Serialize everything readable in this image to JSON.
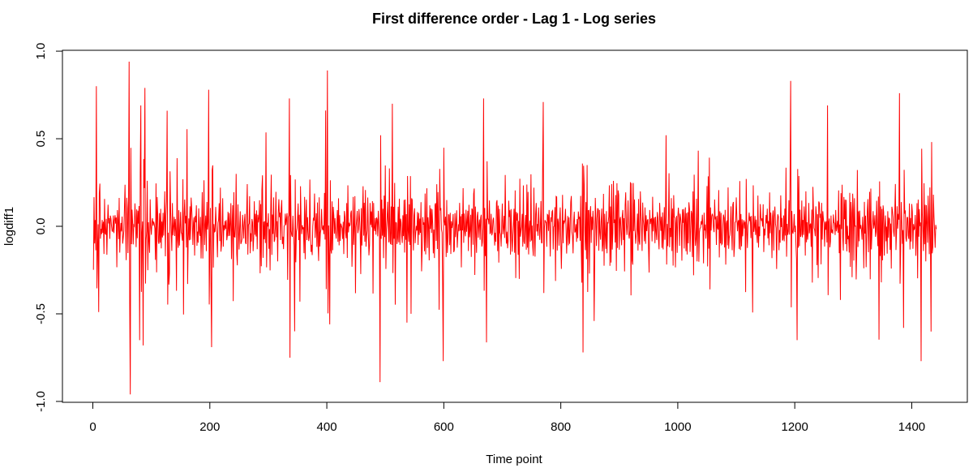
{
  "chart_data": {
    "type": "line",
    "title": "First difference order - Lag 1 - Log series",
    "xlabel": "Time point",
    "ylabel": "logdiff1",
    "xlim": [
      -52,
      1495
    ],
    "ylim": [
      -1.005,
      1.005
    ],
    "x_ticks": [
      0,
      200,
      400,
      600,
      800,
      1000,
      1200,
      1400
    ],
    "y_ticks": [
      -1.0,
      -0.5,
      0.0,
      0.5,
      1.0
    ],
    "x_tick_labels": [
      "0",
      "200",
      "400",
      "600",
      "800",
      "1000",
      "1200",
      "1400"
    ],
    "y_tick_labels": [
      "-1.0",
      "-0.5",
      "0.0",
      "0.5",
      "1.0"
    ],
    "series": [
      {
        "color": "#ff0000",
        "n_points": 1442,
        "x_start": 1,
        "notable_points": [
          {
            "x": 6,
            "y": 0.8
          },
          {
            "x": 10,
            "y": -0.49
          },
          {
            "x": 62,
            "y": 0.94
          },
          {
            "x": 64,
            "y": -0.96
          },
          {
            "x": 80,
            "y": -0.65
          },
          {
            "x": 82,
            "y": 0.69
          },
          {
            "x": 86,
            "y": -0.68
          },
          {
            "x": 89,
            "y": 0.79
          },
          {
            "x": 198,
            "y": 0.78
          },
          {
            "x": 203,
            "y": -0.69
          },
          {
            "x": 336,
            "y": 0.73
          },
          {
            "x": 337,
            "y": -0.75
          },
          {
            "x": 345,
            "y": -0.6
          },
          {
            "x": 401,
            "y": 0.89
          },
          {
            "x": 405,
            "y": -0.56
          },
          {
            "x": 491,
            "y": -0.89
          },
          {
            "x": 512,
            "y": 0.7
          },
          {
            "x": 599,
            "y": -0.77
          },
          {
            "x": 668,
            "y": 0.73
          },
          {
            "x": 770,
            "y": 0.71
          },
          {
            "x": 838,
            "y": -0.72
          },
          {
            "x": 980,
            "y": 0.52
          },
          {
            "x": 1193,
            "y": 0.83
          },
          {
            "x": 1204,
            "y": -0.65
          },
          {
            "x": 1256,
            "y": 0.69
          },
          {
            "x": 1379,
            "y": 0.76
          },
          {
            "x": 1386,
            "y": -0.58
          },
          {
            "x": 1416,
            "y": -0.77
          }
        ]
      }
    ]
  }
}
